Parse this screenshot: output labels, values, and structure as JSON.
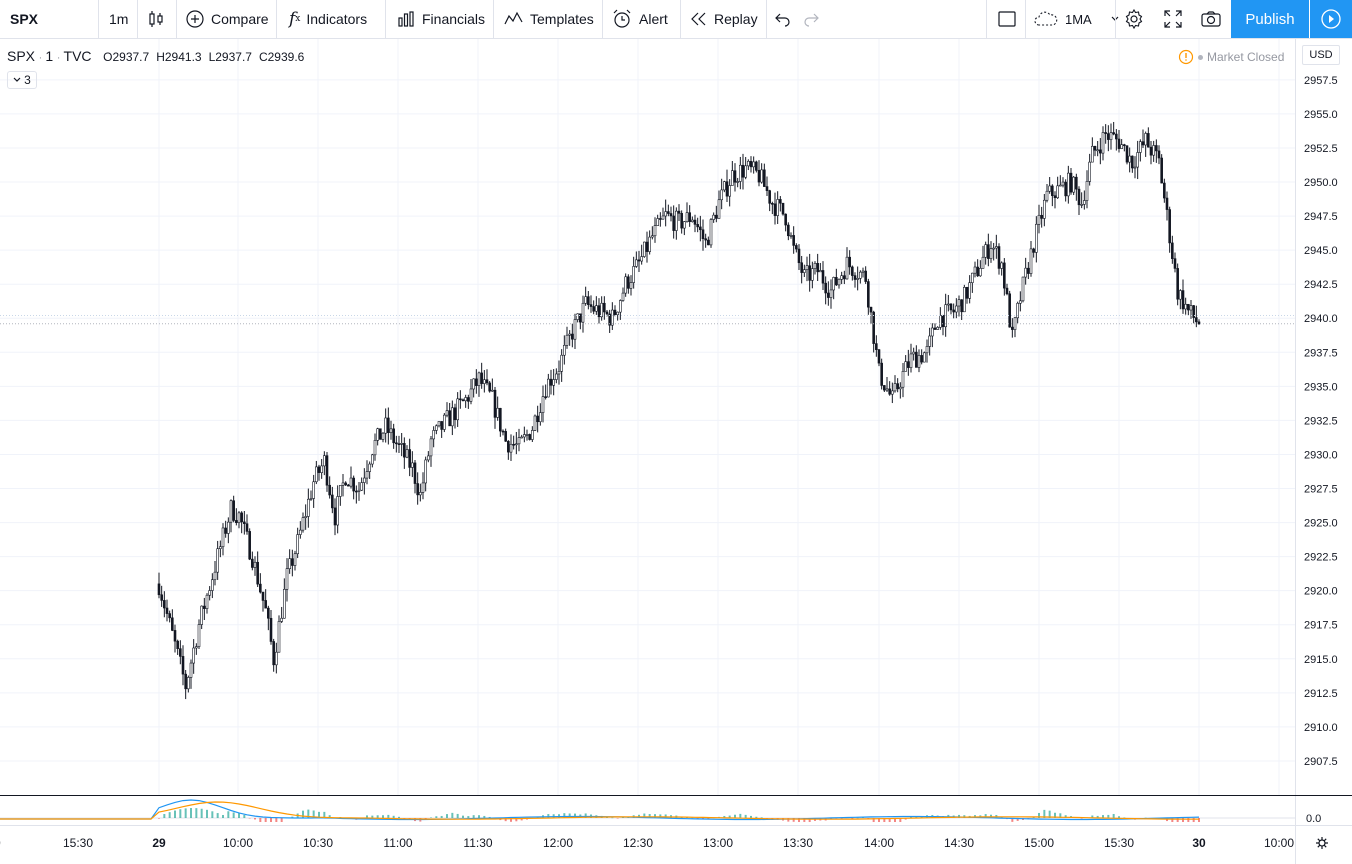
{
  "toolbar": {
    "symbol": "SPX",
    "interval": "1m",
    "compare": "Compare",
    "indicators": "Indicators",
    "financials": "Financials",
    "templates": "Templates",
    "alert": "Alert",
    "replay": "Replay",
    "ma_label": "1MA",
    "publish": "Publish"
  },
  "legend": {
    "symbol": "SPX",
    "interval": "1",
    "exchange": "TVC",
    "open": "O2937.7",
    "high": "H2941.3",
    "low": "L2937.7",
    "close": "C2939.6",
    "collapsed_count": "3"
  },
  "status": {
    "market": "Market Closed",
    "currency": "USD"
  },
  "colors": {
    "accent": "#2196f3",
    "candle": "#131722",
    "grid": "#f0f3fa",
    "warn": "#ff9800"
  },
  "chart_data": {
    "type": "candlestick",
    "series_label": "SPX · 1 · TVC",
    "y_ticks": [
      2907.5,
      2910.0,
      2912.5,
      2915.0,
      2917.5,
      2920.0,
      2922.5,
      2925.0,
      2927.5,
      2930.0,
      2932.5,
      2935.0,
      2937.5,
      2940.0,
      2942.5,
      2945.0,
      2947.5,
      2950.0,
      2952.5,
      2955.0,
      2957.5
    ],
    "x_ticks": [
      "15:30",
      "29",
      "10:00",
      "10:30",
      "11:00",
      "11:30",
      "12:00",
      "12:30",
      "13:00",
      "13:30",
      "14:00",
      "14:30",
      "15:00",
      "15:30",
      "30",
      "10:00"
    ],
    "time_keypoints": [
      [
        "09:30",
        2920.5
      ],
      [
        "09:36",
        2916.0
      ],
      [
        "09:40",
        2913.0
      ],
      [
        "09:45",
        2917.5
      ],
      [
        "09:52",
        2922.5
      ],
      [
        "09:57",
        2926.0
      ],
      [
        "10:00",
        2925.5
      ],
      [
        "10:05",
        2922.5
      ],
      [
        "10:10",
        2918.5
      ],
      [
        "10:13",
        2915.0
      ],
      [
        "10:18",
        2921.0
      ],
      [
        "10:22",
        2923.5
      ],
      [
        "10:28",
        2928.0
      ],
      [
        "10:32",
        2929.5
      ],
      [
        "10:36",
        2925.5
      ],
      [
        "10:40",
        2928.5
      ],
      [
        "10:45",
        2927.5
      ],
      [
        "10:50",
        2930.5
      ],
      [
        "10:55",
        2932.0
      ],
      [
        "11:00",
        2930.5
      ],
      [
        "11:05",
        2929.0
      ],
      [
        "11:08",
        2927.0
      ],
      [
        "11:12",
        2931.0
      ],
      [
        "11:18",
        2932.5
      ],
      [
        "11:25",
        2934.0
      ],
      [
        "11:30",
        2935.5
      ],
      [
        "11:35",
        2934.0
      ],
      [
        "11:40",
        2931.0
      ],
      [
        "11:45",
        2930.5
      ],
      [
        "11:50",
        2932.0
      ],
      [
        "11:55",
        2935.0
      ],
      [
        "12:00",
        2936.5
      ],
      [
        "12:05",
        2939.0
      ],
      [
        "12:10",
        2941.0
      ],
      [
        "12:15",
        2940.5
      ],
      [
        "12:20",
        2940.0
      ],
      [
        "12:25",
        2942.5
      ],
      [
        "12:30",
        2944.0
      ],
      [
        "12:35",
        2946.0
      ],
      [
        "12:40",
        2947.5
      ],
      [
        "12:45",
        2947.0
      ],
      [
        "12:50",
        2947.5
      ],
      [
        "12:55",
        2945.5
      ],
      [
        "13:00",
        2948.5
      ],
      [
        "13:05",
        2950.5
      ],
      [
        "13:10",
        2951.0
      ],
      [
        "13:15",
        2950.5
      ],
      [
        "13:20",
        2948.5
      ],
      [
        "13:25",
        2947.5
      ],
      [
        "13:28",
        2945.0
      ],
      [
        "13:32",
        2943.0
      ],
      [
        "13:37",
        2943.5
      ],
      [
        "13:42",
        2942.0
      ],
      [
        "13:48",
        2944.0
      ],
      [
        "13:55",
        2943.0
      ],
      [
        "14:00",
        2936.0
      ],
      [
        "14:05",
        2934.0
      ],
      [
        "14:08",
        2935.5
      ],
      [
        "14:12",
        2937.0
      ],
      [
        "14:18",
        2937.5
      ],
      [
        "14:22",
        2940.0
      ],
      [
        "14:28",
        2940.5
      ],
      [
        "14:32",
        2941.5
      ],
      [
        "14:38",
        2944.0
      ],
      [
        "14:42",
        2945.5
      ],
      [
        "14:46",
        2944.0
      ],
      [
        "14:50",
        2938.5
      ],
      [
        "14:53",
        2941.5
      ],
      [
        "14:58",
        2945.5
      ],
      [
        "15:03",
        2949.0
      ],
      [
        "15:08",
        2949.5
      ],
      [
        "15:12",
        2950.0
      ],
      [
        "15:16",
        2948.5
      ],
      [
        "15:20",
        2952.0
      ],
      [
        "15:25",
        2953.5
      ],
      [
        "15:30",
        2953.0
      ],
      [
        "15:35",
        2951.5
      ],
      [
        "15:40",
        2953.0
      ],
      [
        "15:45",
        2951.5
      ],
      [
        "15:48",
        2947.5
      ],
      [
        "15:52",
        2942.0
      ],
      [
        "15:56",
        2940.5
      ],
      [
        "16:00",
        2939.6
      ]
    ],
    "y_range": [
      2905.0,
      2960.5
    ],
    "x_range_minutes_from_29_start": [
      -43,
      660
    ],
    "macd_zero_label": "0.0",
    "grid": true
  }
}
